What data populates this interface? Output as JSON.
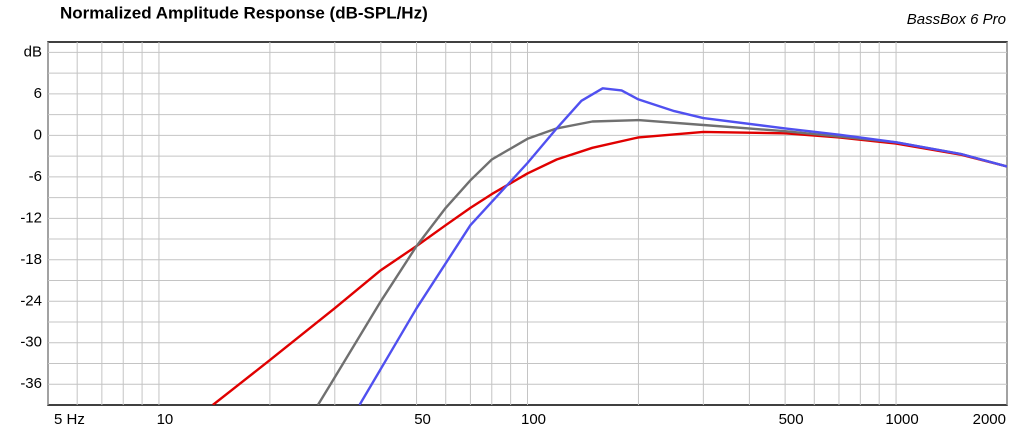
{
  "chart_data": {
    "type": "line",
    "title": "Normalized Amplitude Response (dB-SPL/Hz)",
    "annotation": "BassBox 6 Pro",
    "xscale": "log",
    "xlim": [
      5,
      2000
    ],
    "xticks": [
      {
        "value": 5,
        "label": "5 Hz"
      },
      10,
      50,
      100,
      500,
      1000,
      2000
    ],
    "xgrid": [
      6,
      7,
      8,
      9,
      20,
      30,
      40,
      60,
      70,
      80,
      90,
      200,
      300,
      400,
      600,
      700,
      800,
      900
    ],
    "ylim": [
      -39,
      13.5
    ],
    "yticks": [
      {
        "value": 12,
        "label": "dB"
      },
      6,
      0,
      -6,
      -12,
      -18,
      -24,
      -30,
      -36
    ],
    "ygrid": [
      9,
      3,
      -3,
      -9,
      -15,
      -21,
      -27,
      -33
    ],
    "grid": true,
    "series": [
      {
        "color": "#e00000",
        "x": [
          14,
          20,
          30,
          40,
          50,
          60,
          70,
          80,
          100,
          120,
          150,
          200,
          300,
          500,
          700,
          1000,
          1500,
          2000
        ],
        "values": [
          -39,
          -32.5,
          -25,
          -19.5,
          -16,
          -13,
          -10.5,
          -8.5,
          -5.5,
          -3.5,
          -1.8,
          -0.3,
          0.5,
          0.3,
          -0.3,
          -1.2,
          -2.8,
          -4.5
        ]
      },
      {
        "color": "#707070",
        "x": [
          27,
          30,
          40,
          50,
          60,
          70,
          80,
          100,
          120,
          150,
          200,
          300,
          500,
          1000,
          1500,
          2000
        ],
        "values": [
          -39,
          -35,
          -24,
          -16,
          -10.5,
          -6.5,
          -3.5,
          -0.5,
          1,
          2,
          2.2,
          1.5,
          0.6,
          -1,
          -2.7,
          -4.5
        ]
      },
      {
        "color": "#5050f0",
        "x": [
          35,
          50,
          70,
          100,
          120,
          140,
          160,
          180,
          200,
          250,
          300,
          500,
          700,
          1000,
          1500,
          2000
        ],
        "values": [
          -39,
          -25,
          -13,
          -4,
          1,
          5,
          6.8,
          6.5,
          5.2,
          3.5,
          2.5,
          1,
          0.1,
          -1,
          -2.7,
          -4.5
        ]
      }
    ]
  }
}
